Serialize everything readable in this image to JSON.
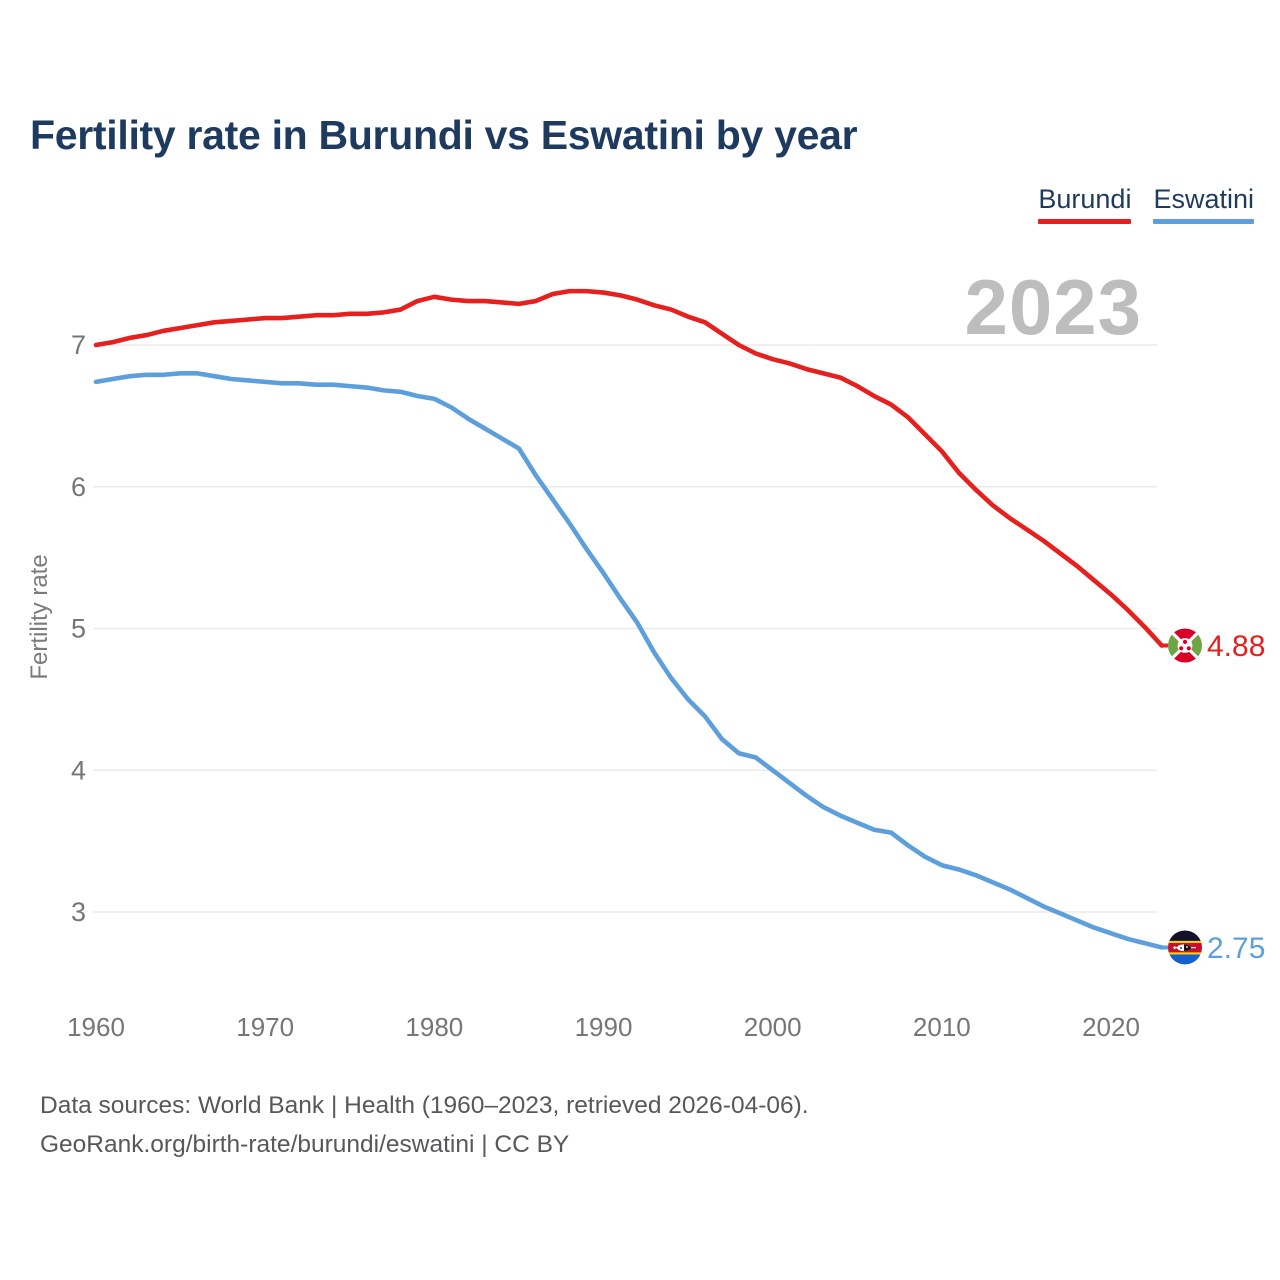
{
  "title": "Fertility rate in Burundi vs Eswatini by year",
  "watermark_year": "2023",
  "legend": {
    "items": [
      {
        "label": "Burundi",
        "color": "#e6201e"
      },
      {
        "label": "Eswatini",
        "color": "#5d9fdd"
      }
    ]
  },
  "footer": {
    "line1": "Data sources: World Bank | Health (1960–2023, retrieved 2026-04-06).",
    "line2": "GeoRank.org/birth-rate/burundi/eswatini | CC BY"
  },
  "chart_data": {
    "type": "line",
    "title": "Fertility rate in Burundi vs Eswatini by year",
    "xlabel": "",
    "ylabel": "Fertility rate",
    "x_ticks": [
      1960,
      1970,
      1980,
      1990,
      2000,
      2010,
      2020
    ],
    "y_ticks": [
      3,
      4,
      5,
      6,
      7
    ],
    "xlim": [
      1960,
      2023
    ],
    "ylim_visible": [
      2.6,
      7.5
    ],
    "grid": "horizontal",
    "legend_position": "top-right",
    "x": [
      1960,
      1961,
      1962,
      1963,
      1964,
      1965,
      1966,
      1967,
      1968,
      1969,
      1970,
      1971,
      1972,
      1973,
      1974,
      1975,
      1976,
      1977,
      1978,
      1979,
      1980,
      1981,
      1982,
      1983,
      1984,
      1985,
      1986,
      1987,
      1988,
      1989,
      1990,
      1991,
      1992,
      1993,
      1994,
      1995,
      1996,
      1997,
      1998,
      1999,
      2000,
      2001,
      2002,
      2003,
      2004,
      2005,
      2006,
      2007,
      2008,
      2009,
      2010,
      2011,
      2012,
      2013,
      2014,
      2015,
      2016,
      2017,
      2018,
      2019,
      2020,
      2021,
      2022,
      2023
    ],
    "series": [
      {
        "name": "Burundi",
        "color": "#e6201e",
        "end_label": "4.88",
        "end_marker": "burundi-flag-icon",
        "values": [
          7.0,
          7.02,
          7.05,
          7.07,
          7.1,
          7.12,
          7.14,
          7.16,
          7.17,
          7.18,
          7.19,
          7.19,
          7.2,
          7.21,
          7.21,
          7.22,
          7.22,
          7.23,
          7.25,
          7.31,
          7.34,
          7.32,
          7.31,
          7.31,
          7.3,
          7.29,
          7.31,
          7.36,
          7.38,
          7.38,
          7.37,
          7.35,
          7.32,
          7.28,
          7.25,
          7.2,
          7.16,
          7.08,
          7.0,
          6.94,
          6.9,
          6.87,
          6.83,
          6.8,
          6.77,
          6.71,
          6.64,
          6.58,
          6.49,
          6.37,
          6.25,
          6.1,
          5.98,
          5.87,
          5.78,
          5.7,
          5.62,
          5.53,
          5.44,
          5.34,
          5.24,
          5.13,
          5.01,
          4.88
        ]
      },
      {
        "name": "Eswatini",
        "color": "#5d9fdd",
        "end_label": "2.75",
        "end_marker": "eswatini-flag-icon",
        "values": [
          6.74,
          6.76,
          6.78,
          6.79,
          6.79,
          6.8,
          6.8,
          6.78,
          6.76,
          6.75,
          6.74,
          6.73,
          6.73,
          6.72,
          6.72,
          6.71,
          6.7,
          6.68,
          6.67,
          6.64,
          6.62,
          6.56,
          6.48,
          6.41,
          6.34,
          6.27,
          6.08,
          5.91,
          5.74,
          5.56,
          5.39,
          5.21,
          5.04,
          4.83,
          4.65,
          4.5,
          4.38,
          4.22,
          4.12,
          4.09,
          4.0,
          3.91,
          3.82,
          3.74,
          3.68,
          3.63,
          3.58,
          3.56,
          3.47,
          3.39,
          3.33,
          3.3,
          3.26,
          3.21,
          3.16,
          3.1,
          3.04,
          2.99,
          2.94,
          2.89,
          2.85,
          2.81,
          2.78,
          2.75
        ]
      }
    ]
  }
}
